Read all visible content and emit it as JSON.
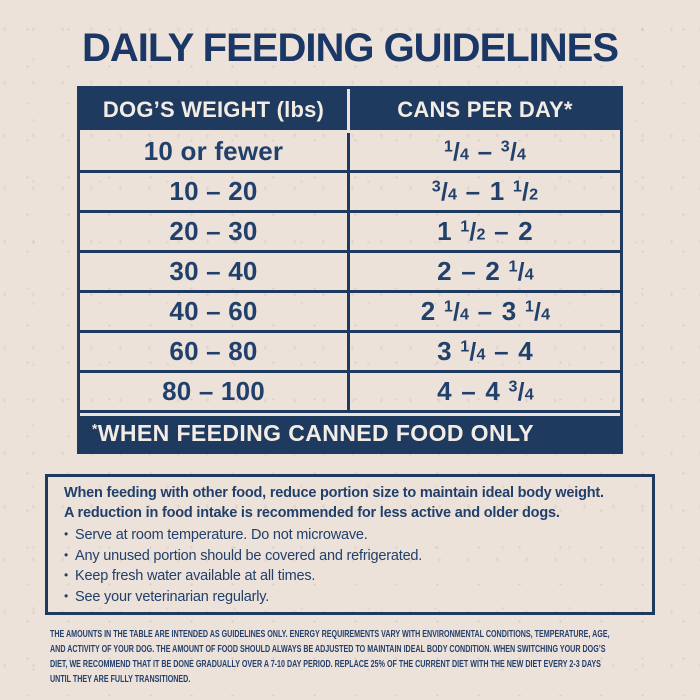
{
  "colors": {
    "navy": "#1e3a5f",
    "background": "#ece2da",
    "band_text": "#f3ece4"
  },
  "title": "DAILY FEEDING GUIDELINES",
  "table": {
    "headers": [
      "DOG’S WEIGHT (lbs)",
      "CANS PER DAY*"
    ],
    "rows": [
      {
        "weight": "10 or fewer",
        "cans": "1/4 – 3/4"
      },
      {
        "weight": "10 – 20",
        "cans": "3/4 – 1 1/2"
      },
      {
        "weight": "20 – 30",
        "cans": "1 1/2 – 2"
      },
      {
        "weight": "30 – 40",
        "cans": "2 – 2 1/4"
      },
      {
        "weight": "40 – 60",
        "cans": "2 1/4 – 3 1/4"
      },
      {
        "weight": "60 – 80",
        "cans": "3 1/4 – 4"
      },
      {
        "weight": "80 – 100",
        "cans": "4 – 4 3/4"
      }
    ],
    "footnote_mark": "*",
    "footnote_text": "WHEN FEEDING CANNED FOOD ONLY"
  },
  "notes": {
    "bullet_glyph": "•",
    "intro_lines": [
      "When feeding with other food, reduce portion size to maintain ideal body weight.",
      "A reduction in food intake is recommended for less active and older dogs."
    ],
    "bullets": [
      "Serve at room temperature. Do not microwave.",
      "Any unused portion should be covered and refrigerated.",
      "Keep fresh water available at all times.",
      "See your veterinarian regularly."
    ]
  },
  "legal_lines": [
    "THE AMOUNTS IN THE TABLE ARE INTENDED AS GUIDELINES ONLY. ENERGY REQUIREMENTS VARY WITH ENVIRONMENTAL CONDITIONS, TEMPERATURE, AGE,",
    "AND ACTIVITY OF YOUR DOG. THE AMOUNT OF FOOD SHOULD ALWAYS BE ADJUSTED TO MAINTAIN IDEAL BODY CONDITION. WHEN SWITCHING YOUR DOG’S",
    "DIET, WE RECOMMEND THAT IT BE DONE GRADUALLY OVER A 7-10 DAY PERIOD. REPLACE 25% OF THE CURRENT DIET WITH THE NEW DIET EVERY 2-3 DAYS",
    "UNTIL THEY ARE FULLY TRANSITIONED."
  ]
}
